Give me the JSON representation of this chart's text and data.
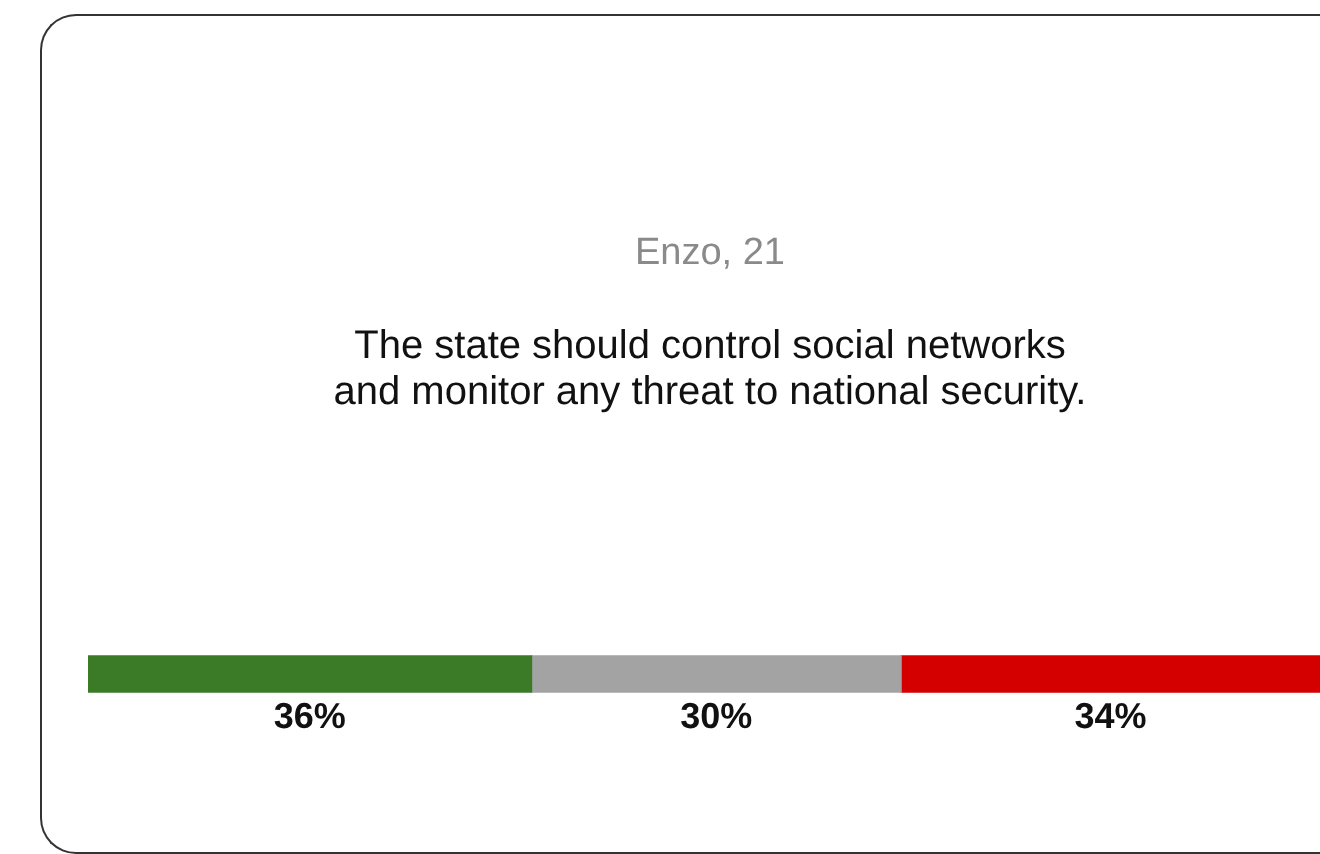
{
  "chart_data": {
    "type": "bar",
    "orientation": "horizontal",
    "stacked": true,
    "title": "Enzo, 21",
    "subtitle": "The state should control social networks and monitor any threat to national security.",
    "categories": [
      null
    ],
    "series": [
      {
        "color": "#3b7a26",
        "values": [
          36
        ],
        "value_labels": [
          "36%"
        ]
      },
      {
        "color": "#a3a3a3",
        "values": [
          30
        ],
        "value_labels": [
          "30%"
        ]
      },
      {
        "color": "#d40000",
        "values": [
          34
        ],
        "value_labels": [
          "34%"
        ]
      }
    ],
    "legend": false
  }
}
